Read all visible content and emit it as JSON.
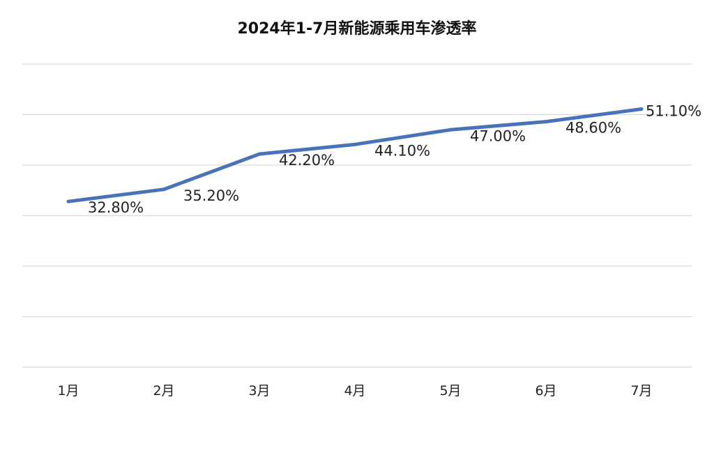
{
  "chart_data": {
    "type": "line",
    "title": "2024年1-7月新能源乘用车渗透率",
    "categories": [
      "1月",
      "2月",
      "3月",
      "4月",
      "5月",
      "6月",
      "7月"
    ],
    "values": [
      32.8,
      35.2,
      42.2,
      44.1,
      47.0,
      48.6,
      51.1
    ],
    "data_labels": [
      "32.80%",
      "35.20%",
      "42.20%",
      "44.10%",
      "47.00%",
      "48.60%",
      "51.10%"
    ],
    "ylim": [
      0,
      60
    ],
    "grid": true,
    "color": "#4a72b8"
  }
}
